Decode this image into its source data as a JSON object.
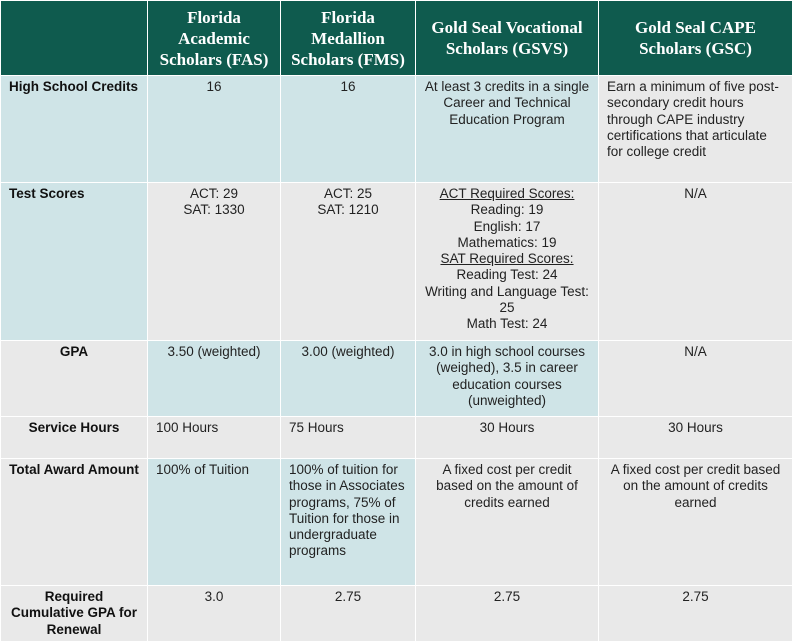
{
  "header": {
    "columns": [
      "Florida Academic Scholars (FAS)",
      "Florida Medallion Scholars (FMS)",
      "Gold Seal Vocational Scholars (GSVS)",
      "Gold Seal CAPE Scholars (GSC)"
    ]
  },
  "rows": [
    {
      "label": "High School Credits",
      "cells": [
        [
          "16"
        ],
        [
          "16"
        ],
        [
          "At least 3 credits in a single Career and Technical Education Program"
        ],
        [
          "Earn a minimum of five post-secondary credit hours through CAPE industry certifications that articulate for college credit"
        ]
      ]
    },
    {
      "label": "Test Scores",
      "cells": [
        [
          "ACT: 29",
          "SAT: 1330"
        ],
        [
          "ACT: 25",
          "SAT: 1210"
        ],
        [
          "ACT Required Scores:",
          "Reading: 19",
          "English: 17",
          "Mathematics: 19",
          "SAT Required Scores:",
          "Reading Test: 24",
          "Writing and Language Test: 25",
          "Math Test: 24"
        ],
        [
          "N/A"
        ]
      ]
    },
    {
      "label": "GPA",
      "cells": [
        [
          "3.50 (weighted)"
        ],
        [
          "3.00 (weighted)"
        ],
        [
          "3.0 in high school courses (weighed), 3.5 in career education courses (unweighted)"
        ],
        [
          "N/A"
        ]
      ]
    },
    {
      "label": "Service Hours",
      "cells": [
        [
          "100 Hours"
        ],
        [
          "75 Hours"
        ],
        [
          "30 Hours"
        ],
        [
          "30 Hours"
        ]
      ]
    },
    {
      "label": "Total Award Amount",
      "cells": [
        [
          "100% of Tuition"
        ],
        [
          "100% of tuition for those in Associates programs, 75% of Tuition for those in undergraduate programs"
        ],
        [
          "A fixed cost per credit based on the amount of credits earned"
        ],
        [
          "A fixed cost per credit based on the amount of credits earned"
        ]
      ]
    },
    {
      "label": "Required Cumulative GPA for Renewal",
      "cells": [
        [
          "3.0"
        ],
        [
          "2.75"
        ],
        [
          "2.75"
        ],
        [
          "2.75"
        ]
      ]
    }
  ]
}
